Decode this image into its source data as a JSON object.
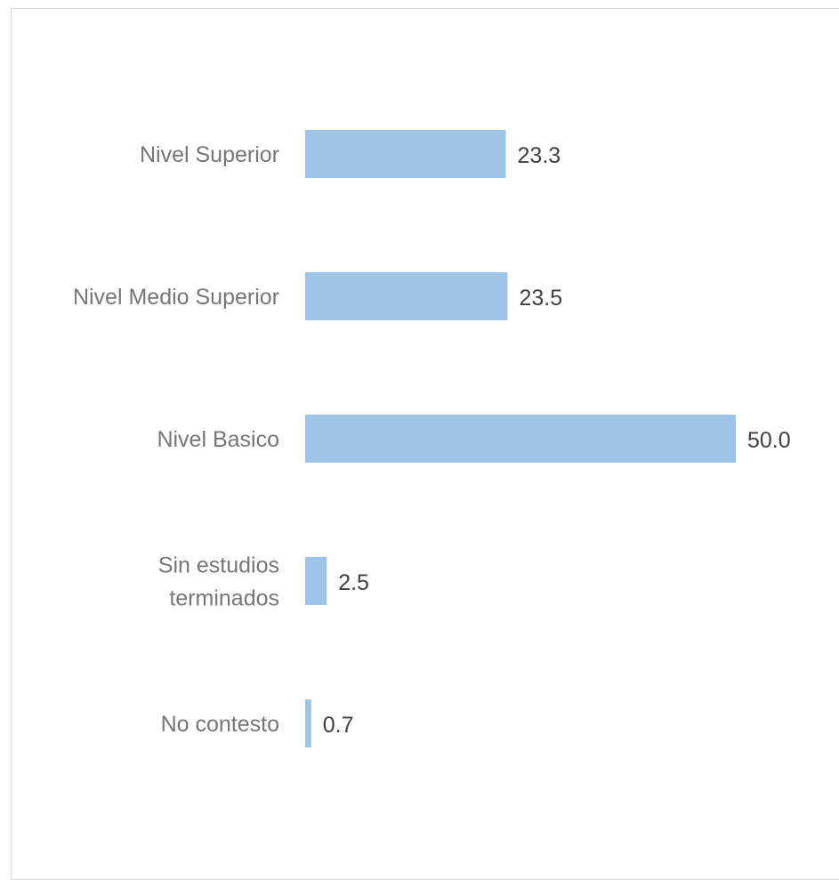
{
  "chart_data": {
    "type": "bar",
    "orientation": "horizontal",
    "categories": [
      [
        "Nivel Superior"
      ],
      [
        "Nivel Medio Superior"
      ],
      [
        "Nivel Basico"
      ],
      [
        "Sin estudios",
        "terminados"
      ],
      [
        "No contesto"
      ]
    ],
    "values": [
      23.3,
      23.5,
      50.0,
      2.5,
      0.7
    ],
    "value_labels": [
      "23.3",
      "23.5",
      "50.0",
      "2.5",
      "0.7"
    ],
    "xlim": [
      0,
      50
    ],
    "grid": false,
    "legend": "none",
    "bar_color": "#9dc3e6"
  }
}
